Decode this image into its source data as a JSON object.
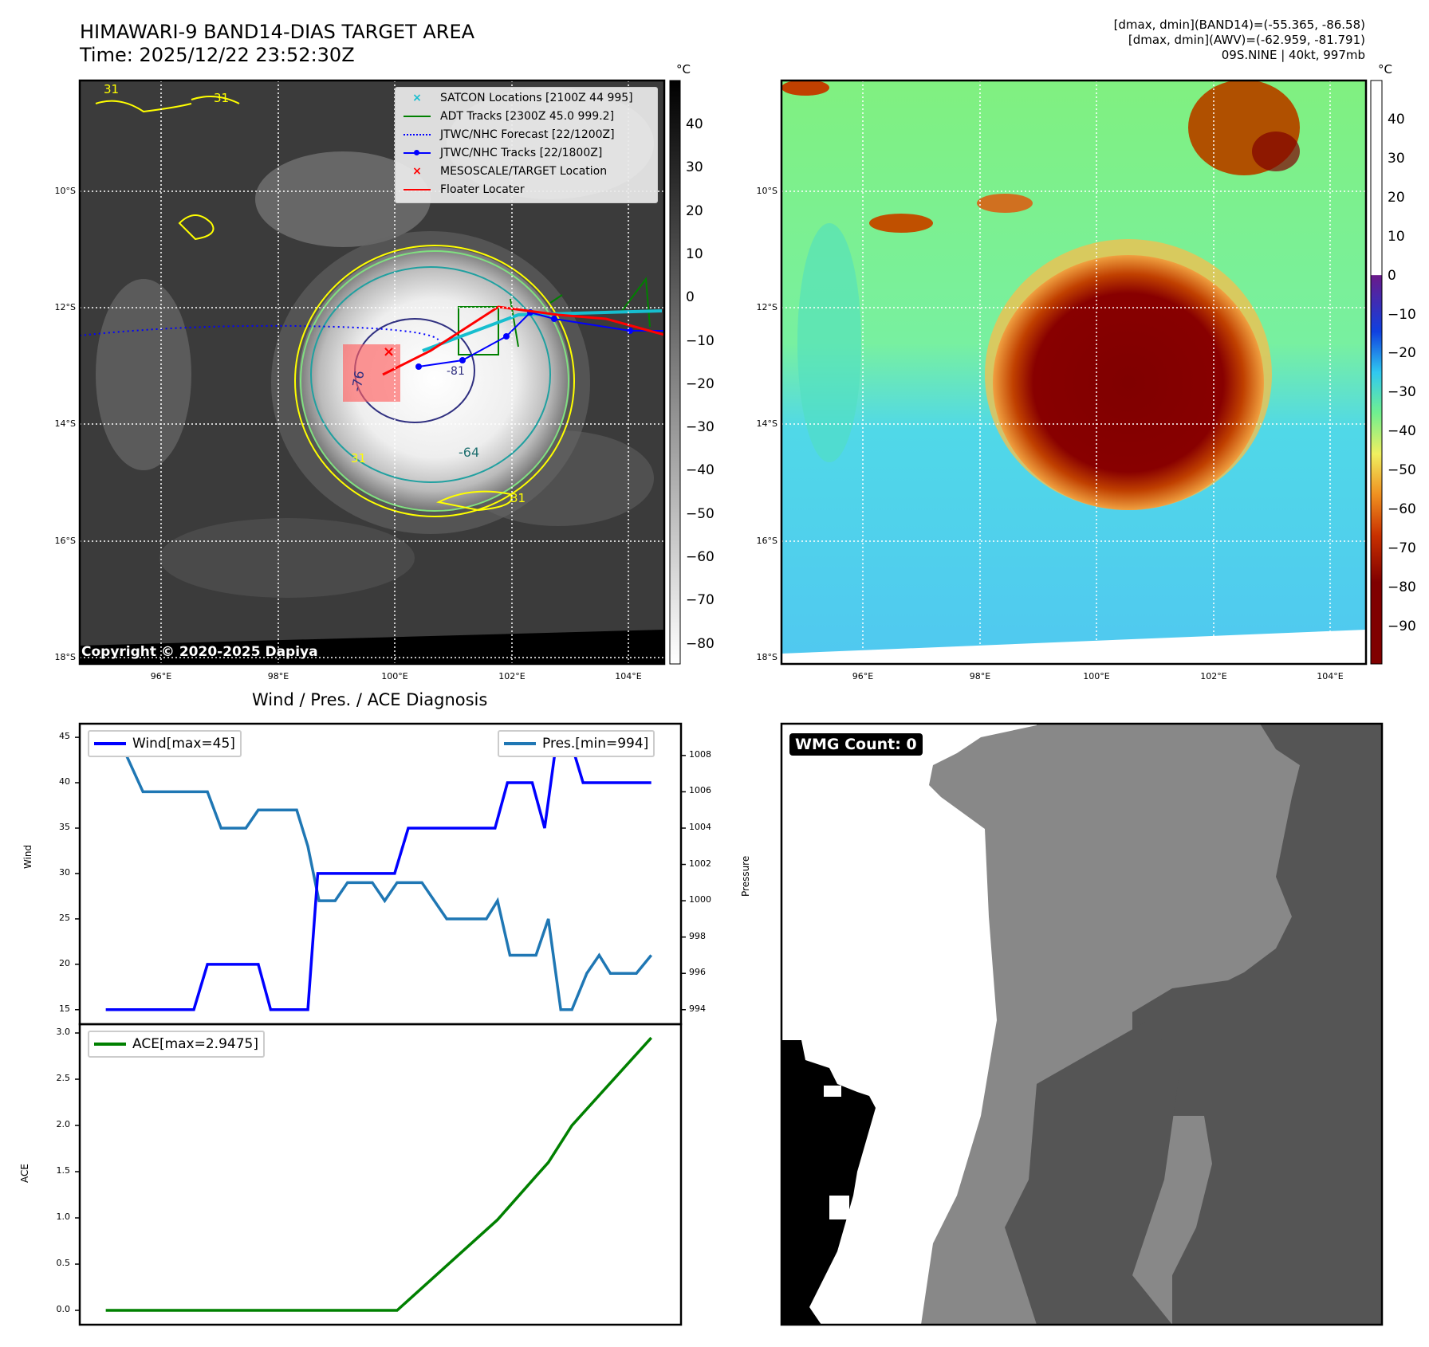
{
  "header": {
    "title_line1": "HIMAWARI-9 BAND14-DIAS TARGET AREA",
    "title_line2": "Time: 2025/12/22 23:52:30Z",
    "info_line1": "[dmax, dmin](BAND14)=(-55.365, -86.58)",
    "info_line2": "[dmax, dmin](AWV)=(-62.959, -81.791)",
    "info_line3": "09S.NINE | 40kt, 997mb"
  },
  "maps": {
    "lat_labels": [
      "10°S",
      "12°S",
      "14°S",
      "16°S",
      "18°S"
    ],
    "lon_labels": [
      "96°E",
      "98°E",
      "100°E",
      "102°E",
      "104°E"
    ],
    "copyright": "Copyright © 2020-2025 Dapiya",
    "contour_labels": [
      "31",
      "31",
      "31",
      "31",
      "-64",
      "-76",
      "-81"
    ],
    "legend": [
      {
        "label": "SATCON Locations [2100Z 44 995]",
        "color": "#17becf",
        "marker": "x"
      },
      {
        "label": "ADT Tracks [2300Z 45.0 999.2]",
        "color": "#008000",
        "marker": "line"
      },
      {
        "label": "JTWC/NHC Forecast [22/1200Z]",
        "color": "#0000ff",
        "marker": "dotted"
      },
      {
        "label": "JTWC/NHC Tracks [22/1800Z]",
        "color": "#0000ff",
        "marker": "line-dot"
      },
      {
        "label": "MESOSCALE/TARGET Location",
        "color": "#ff0000",
        "marker": "x"
      },
      {
        "label": "Floater Locater",
        "color": "#ff0000",
        "marker": "line"
      }
    ],
    "left_colorbar": {
      "unit": "°C",
      "ticks": [
        "40",
        "30",
        "20",
        "10",
        "0",
        "−10",
        "−20",
        "−30",
        "−40",
        "−50",
        "−60",
        "−70",
        "−80"
      ]
    },
    "right_colorbar": {
      "unit": "°C",
      "ticks": [
        "40",
        "30",
        "20",
        "10",
        "0",
        "−10",
        "−20",
        "−30",
        "−40",
        "−50",
        "−60",
        "−70",
        "−80",
        "−90"
      ]
    }
  },
  "chart_data": [
    {
      "type": "line",
      "title": "Wind / Pres. / ACE Diagnosis",
      "ylabel": "Wind",
      "y2label": "Pressure",
      "ylim": [
        13.4,
        46.5
      ],
      "y2lim": [
        993.2,
        1009.75
      ],
      "xlim": [
        -2.1,
        46.4
      ],
      "yticks": [
        "15",
        "20",
        "25",
        "30",
        "35",
        "40",
        "45"
      ],
      "y2ticks": [
        "994",
        "996",
        "998",
        "1000",
        "1002",
        "1004",
        "1006",
        "1008"
      ],
      "series": [
        {
          "name": "Wind[max=45]",
          "color": "#0000ff",
          "axis": "left",
          "x": [
            0,
            7.1,
            8.2,
            12.3,
            13.3,
            16.3,
            17.1,
            23.3,
            24.4,
            31.4,
            32.4,
            34.4,
            35.4,
            36.4,
            37.4,
            38.5,
            44
          ],
          "y": [
            15,
            15,
            20,
            20,
            15,
            15,
            30,
            30,
            35,
            35,
            40,
            40,
            35,
            45,
            45,
            40,
            40
          ]
        },
        {
          "name": "Pres.[min=994]",
          "color": "#1f77b4",
          "axis": "right",
          "x": [
            0,
            1,
            3,
            8.2,
            9.3,
            11.3,
            12.3,
            15.4,
            16.3,
            17.2,
            18.5,
            19.5,
            21.5,
            22.5,
            23.5,
            25.5,
            27.5,
            30.7,
            31.6,
            32.6,
            34.7,
            35.7,
            36.7,
            37.6,
            38.8,
            39.8,
            40.7,
            42.8,
            44
          ],
          "y": [
            1009,
            1009,
            1006,
            1006,
            1004,
            1004,
            1005,
            1005,
            1003,
            1000,
            1000,
            1001,
            1001,
            1000,
            1001,
            1001,
            999,
            999,
            1000,
            997,
            997,
            999,
            994,
            994,
            996,
            997,
            996,
            996,
            997
          ]
        }
      ]
    },
    {
      "type": "line",
      "ylabel": "ACE",
      "ylim": [
        -0.155,
        3.095
      ],
      "xlim": [
        -2.1,
        46.4
      ],
      "yticks": [
        "0.0",
        "0.5",
        "1.0",
        "1.5",
        "2.0",
        "2.5",
        "3.0"
      ],
      "series": [
        {
          "name": "ACE[max=2.9475]",
          "color": "#008000",
          "x": [
            0,
            23.5,
            31.6,
            34.7,
            35.7,
            37.6,
            44
          ],
          "y": [
            0,
            0,
            0.98,
            1.45,
            1.6,
            2.0,
            2.9475
          ]
        }
      ]
    }
  ],
  "wmg": {
    "label": "WMG Count: 0"
  }
}
